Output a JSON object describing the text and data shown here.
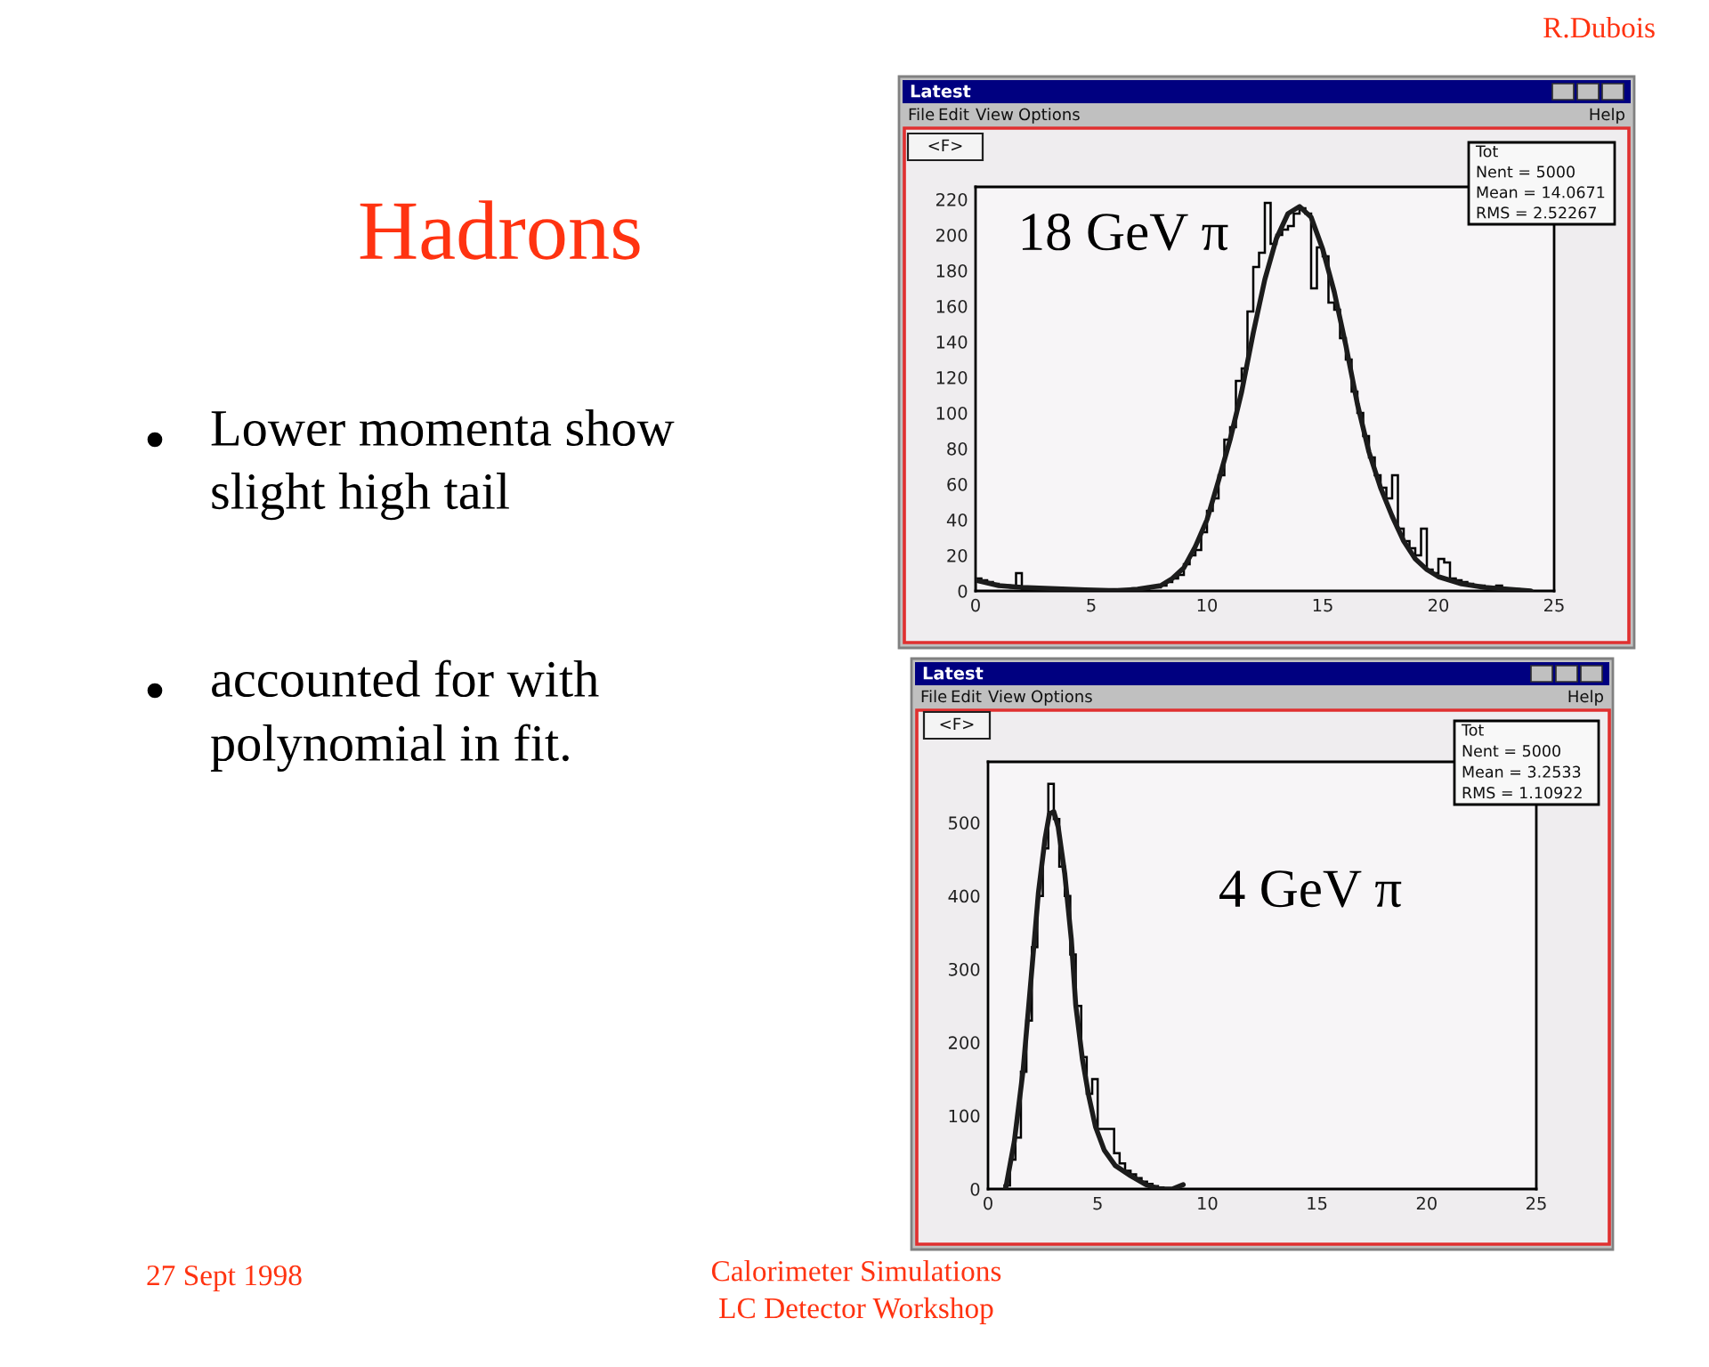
{
  "chart_data": [
    {
      "type": "other",
      "title": "Hadrons",
      "annotations": [
        "R.Dubois",
        "Lower momenta show\nslight high tail",
        "accounted for with\npolynomial in fit.",
        "27 Sept 1998",
        "Calorimeter Simulations\nLC Detector Workshop"
      ]
    },
    {
      "type": "histogram",
      "title": "Latest",
      "annotations": [
        "File",
        "Edit",
        "View",
        "Options",
        "Help",
        "<F>",
        "Tot",
        "Nent = 5000",
        "Mean = 14.0671",
        "RMS = 2.52267",
        "18 GeV π"
      ],
      "series": [
        {
          "type": "histogram",
          "color": "#000000",
          "bins": [
            0,
            0.25,
            0.5,
            0.75,
            1,
            1.5,
            1.75,
            2,
            7.5,
            8,
            8.25,
            8.5,
            8.75,
            9,
            9.25,
            9.5,
            9.75,
            10,
            10.25,
            10.5,
            10.75,
            11,
            11.25,
            11.5,
            11.75,
            12,
            12.25,
            12.5,
            12.75,
            13,
            13.25,
            13.5,
            13.75,
            14,
            14.25,
            14.5,
            14.75,
            15,
            15.25,
            15.5,
            15.75,
            16,
            16.25,
            16.5,
            16.75,
            17,
            17.25,
            17.5,
            17.75,
            18,
            18.25,
            18.5,
            18.75,
            19,
            19.25,
            19.5,
            19.75,
            20,
            20.25,
            20.5,
            20.75,
            21,
            21.25,
            21.5,
            22,
            22.5,
            22.75,
            23.5
          ],
          "values": [
            7,
            6,
            5,
            4,
            3,
            2,
            10,
            1,
            2,
            3,
            5,
            7,
            9,
            15,
            20,
            23,
            33,
            45,
            52,
            65,
            85,
            92,
            118,
            125,
            157,
            182,
            190,
            218,
            195,
            200,
            203,
            205,
            212,
            215,
            212,
            170,
            193,
            188,
            162,
            158,
            142,
            130,
            112,
            100,
            87,
            75,
            65,
            58,
            52,
            65,
            35,
            28,
            24,
            20,
            35,
            12,
            10,
            18,
            16,
            7,
            6,
            5,
            4,
            3,
            2,
            3,
            1
          ]
        },
        {
          "type": "line",
          "color": "#1c1c1c",
          "x": [
            0,
            1,
            2,
            4,
            6,
            7,
            8,
            8.5,
            9,
            9.5,
            10,
            10.5,
            11,
            11.5,
            12,
            12.5,
            13,
            13.5,
            14,
            14.5,
            15,
            15.5,
            16,
            16.5,
            17,
            17.5,
            18,
            18.5,
            19,
            19.5,
            20,
            21,
            22,
            23,
            24
          ],
          "values": [
            6,
            3,
            2,
            1,
            0,
            1,
            3,
            7,
            13,
            25,
            40,
            62,
            85,
            112,
            145,
            175,
            198,
            212,
            216,
            210,
            192,
            168,
            138,
            105,
            78,
            58,
            42,
            28,
            18,
            12,
            8,
            4,
            2,
            1,
            0
          ]
        }
      ],
      "xlim": [
        0,
        25
      ],
      "xticks": [
        0,
        5,
        10,
        15,
        20,
        25
      ],
      "ylim": [
        0,
        227
      ],
      "yticks": [
        0,
        20,
        40,
        60,
        80,
        100,
        120,
        140,
        160,
        180,
        200,
        220
      ]
    },
    {
      "type": "histogram",
      "title": "Latest",
      "annotations": [
        "File",
        "Edit",
        "View",
        "Options",
        "Help",
        "<F>",
        "Tot",
        "Nent = 5000",
        "Mean = 3.2533",
        "RMS = 1.10922",
        "4 GeV π"
      ],
      "series": [
        {
          "type": "histogram",
          "color": "#000000",
          "bins": [
            0.75,
            1,
            1.25,
            1.5,
            1.75,
            2,
            2.25,
            2.5,
            2.75,
            3,
            3.25,
            3.5,
            3.75,
            4,
            4.25,
            4.5,
            4.75,
            5,
            5.75,
            6,
            6.25,
            6.5,
            6.75,
            7,
            7.25,
            7.5,
            7.75,
            8,
            8.5
          ],
          "values": [
            5,
            40,
            70,
            160,
            230,
            330,
            400,
            465,
            553,
            505,
            440,
            400,
            320,
            250,
            180,
            130,
            150,
            82,
            49,
            35,
            25,
            20,
            15,
            10,
            7,
            4,
            2,
            1
          ]
        },
        {
          "type": "line",
          "color": "#1c1c1c",
          "x": [
            0.8,
            1.2,
            1.6,
            2.0,
            2.3,
            2.6,
            2.8,
            3.0,
            3.2,
            3.5,
            3.8,
            4.0,
            4.3,
            4.6,
            4.9,
            5.3,
            5.8,
            6.5,
            7.2,
            7.8,
            8.4,
            8.9
          ],
          "values": [
            0,
            65,
            162,
            300,
            405,
            478,
            512,
            515,
            494,
            430,
            340,
            251,
            178,
            126,
            85,
            53,
            32,
            18,
            6,
            0,
            0,
            6
          ]
        }
      ],
      "xlim": [
        0,
        25
      ],
      "xticks": [
        0,
        5,
        10,
        15,
        20,
        25
      ],
      "ylim": [
        0,
        583
      ],
      "yticks": [
        0,
        100,
        200,
        300,
        400,
        500
      ]
    }
  ]
}
